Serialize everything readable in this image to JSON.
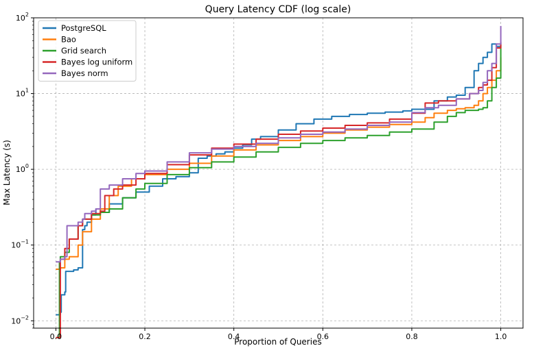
{
  "chart_data": {
    "type": "line",
    "title": "Query Latency CDF (log scale)",
    "xlabel": "Proportion of Queries",
    "ylabel": "Max Latency (s)",
    "xlim": [
      -0.05,
      1.05
    ],
    "ylim": [
      0.008,
      100
    ],
    "yscale": "log",
    "grid": true,
    "legend_position": "top-left",
    "x_ticks": [
      {
        "value": 0.0,
        "label": "0.0"
      },
      {
        "value": 0.2,
        "label": "0.2"
      },
      {
        "value": 0.4,
        "label": "0.4"
      },
      {
        "value": 0.6,
        "label": "0.6"
      },
      {
        "value": 0.8,
        "label": "0.8"
      },
      {
        "value": 1.0,
        "label": "1.0"
      }
    ],
    "y_ticks": [
      {
        "value": 0.01,
        "base": "10",
        "exp": "−2"
      },
      {
        "value": 0.1,
        "base": "10",
        "exp": "−1"
      },
      {
        "value": 1,
        "base": "10",
        "exp": "0"
      },
      {
        "value": 10,
        "base": "10",
        "exp": "1"
      },
      {
        "value": 100,
        "base": "10",
        "exp": "2"
      }
    ],
    "series": [
      {
        "name": "PostgreSQL",
        "color": "#1f77b4",
        "x": [
          0.0,
          0.01,
          0.012,
          0.02,
          0.022,
          0.04,
          0.05,
          0.06,
          0.065,
          0.07,
          0.08,
          0.09,
          0.1,
          0.12,
          0.15,
          0.18,
          0.21,
          0.24,
          0.27,
          0.3,
          0.32,
          0.34,
          0.36,
          0.38,
          0.4,
          0.42,
          0.44,
          0.46,
          0.5,
          0.54,
          0.58,
          0.62,
          0.66,
          0.7,
          0.74,
          0.78,
          0.8,
          0.85,
          0.88,
          0.9,
          0.92,
          0.94,
          0.95,
          0.96,
          0.97,
          0.98,
          0.99,
          1.0
        ],
        "values": [
          0.012,
          0.013,
          0.022,
          0.024,
          0.045,
          0.047,
          0.05,
          0.16,
          0.18,
          0.2,
          0.25,
          0.3,
          0.27,
          0.35,
          0.42,
          0.5,
          0.6,
          0.75,
          0.8,
          0.9,
          1.4,
          1.5,
          1.6,
          1.7,
          1.9,
          2.1,
          2.5,
          2.7,
          3.3,
          4.0,
          4.6,
          5.0,
          5.3,
          5.5,
          5.7,
          5.9,
          6.2,
          8.0,
          9.0,
          9.5,
          12.0,
          20.0,
          25.0,
          30.0,
          35.0,
          45.0,
          42.0,
          46.0
        ]
      },
      {
        "name": "Bao",
        "color": "#ff7f0e",
        "x": [
          0.0,
          0.01,
          0.02,
          0.03,
          0.05,
          0.06,
          0.08,
          0.1,
          0.12,
          0.14,
          0.17,
          0.2,
          0.25,
          0.3,
          0.35,
          0.4,
          0.45,
          0.5,
          0.55,
          0.6,
          0.65,
          0.7,
          0.75,
          0.8,
          0.83,
          0.85,
          0.88,
          0.9,
          0.92,
          0.94,
          0.95,
          0.96,
          0.97,
          0.98,
          0.99,
          1.0
        ],
        "values": [
          0.048,
          0.05,
          0.065,
          0.07,
          0.1,
          0.15,
          0.22,
          0.3,
          0.45,
          0.6,
          0.75,
          0.85,
          1.0,
          1.2,
          1.5,
          1.8,
          2.1,
          2.4,
          2.7,
          3.0,
          3.3,
          3.6,
          3.9,
          4.2,
          4.8,
          5.5,
          6.0,
          6.3,
          6.5,
          7.0,
          8.0,
          10.0,
          12.0,
          15.0,
          20.0,
          30.0
        ]
      },
      {
        "name": "Grid search",
        "color": "#2ca02c",
        "x": [
          0.0,
          0.005,
          0.008,
          0.01,
          0.02,
          0.03,
          0.05,
          0.06,
          0.08,
          0.1,
          0.12,
          0.15,
          0.18,
          0.2,
          0.25,
          0.3,
          0.35,
          0.4,
          0.45,
          0.5,
          0.55,
          0.6,
          0.65,
          0.7,
          0.75,
          0.8,
          0.85,
          0.88,
          0.9,
          0.92,
          0.95,
          0.96,
          0.97,
          0.98,
          0.99,
          1.0
        ],
        "values": [
          0.006,
          0.006,
          0.06,
          0.07,
          0.08,
          0.12,
          0.18,
          0.22,
          0.25,
          0.27,
          0.3,
          0.42,
          0.55,
          0.65,
          0.85,
          1.05,
          1.25,
          1.45,
          1.7,
          1.95,
          2.2,
          2.4,
          2.6,
          2.8,
          3.1,
          3.4,
          4.2,
          5.0,
          5.6,
          6.0,
          6.2,
          6.5,
          8.0,
          12.0,
          16.0,
          42.0
        ]
      },
      {
        "name": "Bayes log uniform",
        "color": "#d62728",
        "x": [
          0.0,
          0.008,
          0.01,
          0.02,
          0.03,
          0.05,
          0.06,
          0.08,
          0.1,
          0.11,
          0.13,
          0.15,
          0.18,
          0.2,
          0.25,
          0.3,
          0.35,
          0.4,
          0.45,
          0.5,
          0.55,
          0.6,
          0.65,
          0.7,
          0.75,
          0.8,
          0.83,
          0.86,
          0.9,
          0.93,
          0.95,
          0.96,
          0.97,
          0.98,
          0.99,
          1.0
        ],
        "values": [
          0.006,
          0.006,
          0.065,
          0.09,
          0.12,
          0.18,
          0.22,
          0.26,
          0.28,
          0.45,
          0.55,
          0.62,
          0.75,
          0.88,
          1.15,
          1.55,
          1.9,
          2.15,
          2.5,
          2.9,
          3.2,
          3.5,
          3.8,
          4.1,
          4.6,
          5.5,
          7.5,
          8.0,
          8.5,
          10.0,
          12.0,
          13.0,
          15.0,
          22.0,
          40.0,
          48.0
        ]
      },
      {
        "name": "Bayes norm",
        "color": "#9467bd",
        "x": [
          0.0,
          0.01,
          0.02,
          0.025,
          0.05,
          0.06,
          0.065,
          0.08,
          0.09,
          0.1,
          0.12,
          0.15,
          0.18,
          0.2,
          0.25,
          0.3,
          0.35,
          0.4,
          0.45,
          0.5,
          0.55,
          0.6,
          0.65,
          0.7,
          0.75,
          0.8,
          0.83,
          0.86,
          0.9,
          0.93,
          0.95,
          0.96,
          0.97,
          0.98,
          0.99,
          1.0
        ],
        "values": [
          0.06,
          0.065,
          0.07,
          0.18,
          0.2,
          0.22,
          0.26,
          0.28,
          0.3,
          0.55,
          0.62,
          0.75,
          0.88,
          0.95,
          1.25,
          1.65,
          1.85,
          2.0,
          2.2,
          2.6,
          2.9,
          3.1,
          3.4,
          3.8,
          4.2,
          5.6,
          6.5,
          7.0,
          8.5,
          10.0,
          11.0,
          14.0,
          20.0,
          25.0,
          45.0,
          78.0
        ]
      }
    ]
  }
}
